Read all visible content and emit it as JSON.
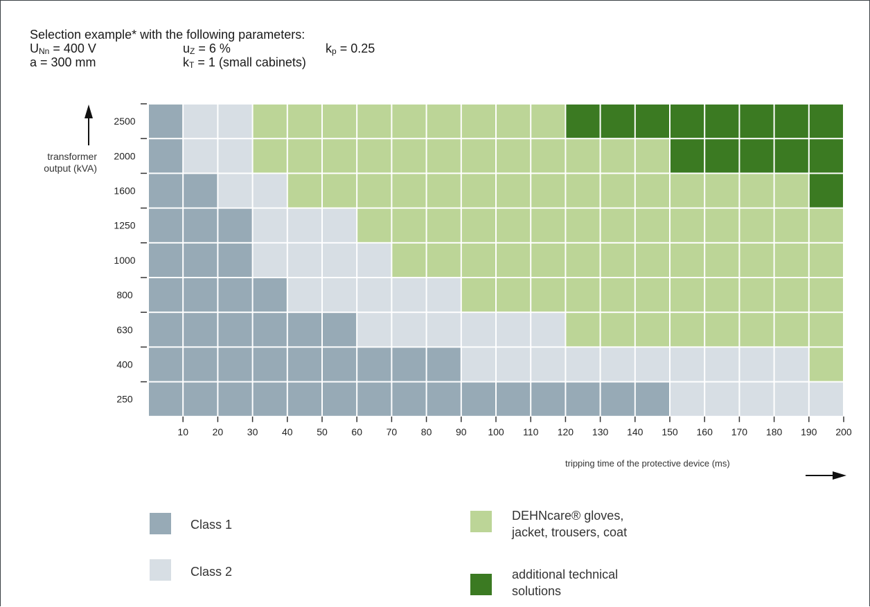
{
  "header": {
    "line1": "Selection example* with the following parameters:",
    "unn_sym": "U",
    "unn_sub": "Nn",
    "unn_val": " = 400 V",
    "uz_sym": "u",
    "uz_sub": "Z",
    "uz_val": " = 6 %",
    "kp_sym": "k",
    "kp_sub": "p",
    "kp_val": " = 0.25",
    "a_text": "a = 300 mm",
    "kt_sym": "k",
    "kt_sub": "T",
    "kt_val": " = 1 (small cabinets)"
  },
  "colors": {
    "class1": "#97aab6",
    "class2": "#d7dee4",
    "dehncare": "#bcd597",
    "additional": "#3b7a22"
  },
  "chart_data": {
    "type": "heatmap",
    "ylabel": "transformer output (kVA)",
    "xlabel": "tripping time of the protective device (ms)",
    "y_categories": [
      "2500",
      "2000",
      "1600",
      "1250",
      "1000",
      "800",
      "630",
      "400",
      "250"
    ],
    "x_ticks": [
      "10",
      "20",
      "30",
      "40",
      "50",
      "60",
      "70",
      "80",
      "90",
      "100",
      "110",
      "120",
      "130",
      "140",
      "150",
      "160",
      "170",
      "180",
      "190",
      "200"
    ],
    "legend": {
      "1": "Class 1",
      "2": "Class 2",
      "3": "DEHNcare® gloves, jacket, trousers, coat",
      "4": "additional technical solutions"
    },
    "rows": [
      {
        "kva": "2500",
        "classes": [
          1,
          2,
          2,
          3,
          3,
          3,
          3,
          3,
          3,
          3,
          3,
          3,
          4,
          4,
          4,
          4,
          4,
          4,
          4,
          4
        ]
      },
      {
        "kva": "2000",
        "classes": [
          1,
          2,
          2,
          3,
          3,
          3,
          3,
          3,
          3,
          3,
          3,
          3,
          3,
          3,
          3,
          4,
          4,
          4,
          4,
          4
        ]
      },
      {
        "kva": "1600",
        "classes": [
          1,
          1,
          2,
          2,
          3,
          3,
          3,
          3,
          3,
          3,
          3,
          3,
          3,
          3,
          3,
          3,
          3,
          3,
          3,
          4
        ]
      },
      {
        "kva": "1250",
        "classes": [
          1,
          1,
          1,
          2,
          2,
          2,
          3,
          3,
          3,
          3,
          3,
          3,
          3,
          3,
          3,
          3,
          3,
          3,
          3,
          3
        ]
      },
      {
        "kva": "1000",
        "classes": [
          1,
          1,
          1,
          2,
          2,
          2,
          2,
          3,
          3,
          3,
          3,
          3,
          3,
          3,
          3,
          3,
          3,
          3,
          3,
          3
        ]
      },
      {
        "kva": "800",
        "classes": [
          1,
          1,
          1,
          1,
          2,
          2,
          2,
          2,
          2,
          3,
          3,
          3,
          3,
          3,
          3,
          3,
          3,
          3,
          3,
          3
        ]
      },
      {
        "kva": "630",
        "classes": [
          1,
          1,
          1,
          1,
          1,
          1,
          2,
          2,
          2,
          2,
          2,
          2,
          3,
          3,
          3,
          3,
          3,
          3,
          3,
          3
        ]
      },
      {
        "kva": "400",
        "classes": [
          1,
          1,
          1,
          1,
          1,
          1,
          1,
          1,
          1,
          2,
          2,
          2,
          2,
          2,
          2,
          2,
          2,
          2,
          2,
          3
        ]
      },
      {
        "kva": "250",
        "classes": [
          1,
          1,
          1,
          1,
          1,
          1,
          1,
          1,
          1,
          1,
          1,
          1,
          1,
          1,
          1,
          2,
          2,
          2,
          2,
          2
        ]
      }
    ]
  },
  "legend_items": {
    "class1": "Class 1",
    "class2": "Class 2",
    "dehncare_l1": "DEHNcare® gloves,",
    "dehncare_l2": "jacket, trousers, coat",
    "additional_l1": "additional technical",
    "additional_l2": "solutions"
  }
}
